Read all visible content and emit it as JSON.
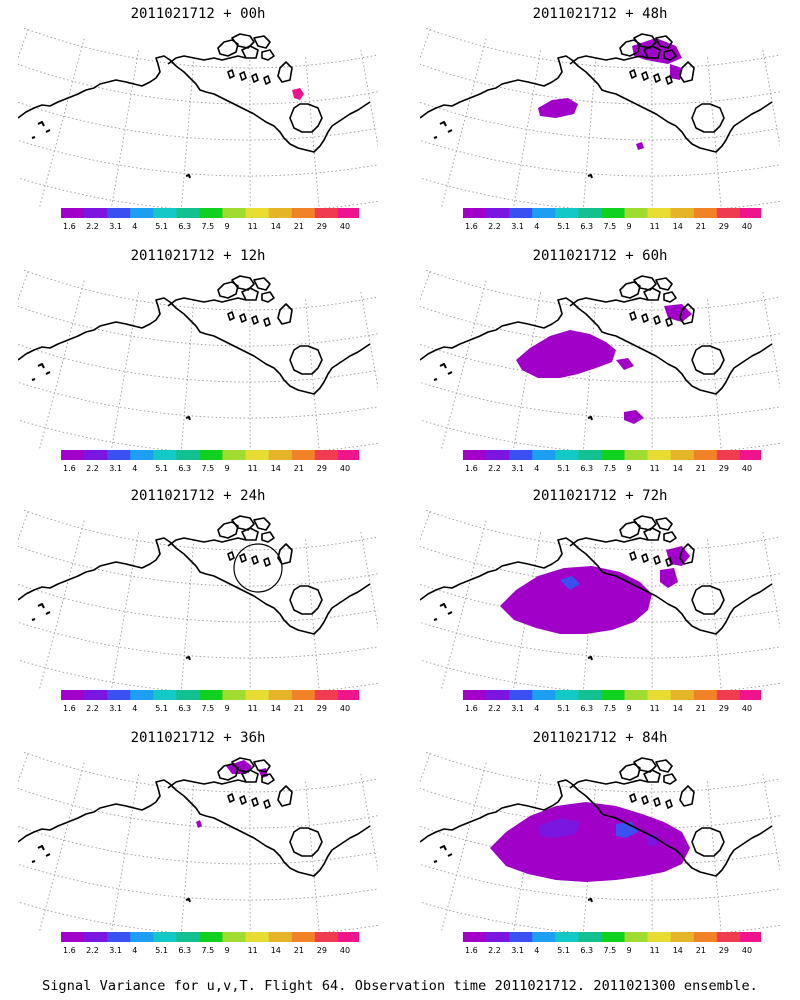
{
  "panels": [
    {
      "id": "p00",
      "title": "2011021712 + 00h",
      "col": 0,
      "row": 0
    },
    {
      "id": "p48",
      "title": "2011021712 + 48h",
      "col": 1,
      "row": 0
    },
    {
      "id": "p12",
      "title": "2011021712 + 12h",
      "col": 0,
      "row": 1
    },
    {
      "id": "p60",
      "title": "2011021712 + 60h",
      "col": 1,
      "row": 1
    },
    {
      "id": "p24",
      "title": "2011021712 + 24h",
      "col": 0,
      "row": 2
    },
    {
      "id": "p72",
      "title": "2011021712 + 72h",
      "col": 1,
      "row": 2
    },
    {
      "id": "p36",
      "title": "2011021712 + 36h",
      "col": 0,
      "row": 3
    },
    {
      "id": "p84",
      "title": "2011021712 + 84h",
      "col": 1,
      "row": 3
    }
  ],
  "colorbar": {
    "labels": [
      "1.6",
      "2.2",
      "3.1",
      "4",
      "5.1",
      "6.3",
      "7.5",
      "9",
      "11",
      "14",
      "21",
      "29",
      "40"
    ],
    "colors": [
      "#a000c8",
      "#7a16e0",
      "#3a50f0",
      "#1e9ef0",
      "#14c8c8",
      "#14c090",
      "#10d020",
      "#a0dc30",
      "#e6dc32",
      "#e6b428",
      "#f08228",
      "#f03c50",
      "#f0148c"
    ]
  },
  "colors": {
    "coast": "#000000",
    "graticule": "#9a9a9a"
  },
  "footer": {
    "caption": "Signal Variance for u,v,T. Flight 64. Observation time 2011021712. 2011021300 ensemble."
  }
}
